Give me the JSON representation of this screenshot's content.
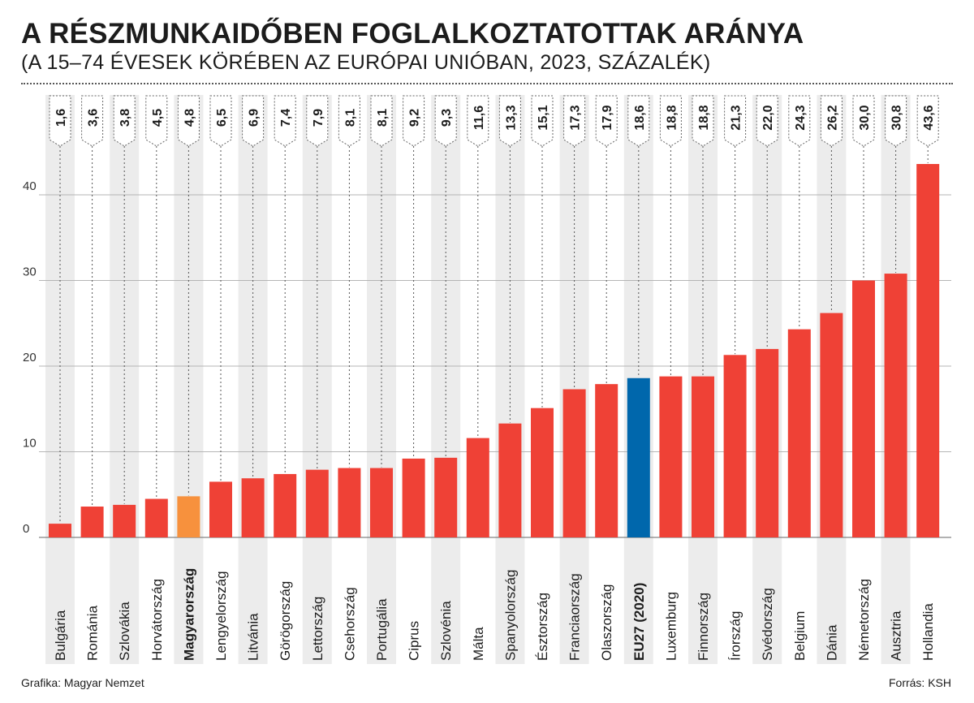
{
  "title": "A RÉSZMUNKAIDŐBEN FOGLALKOZTATOTTAK ARÁNYA",
  "subtitle": "(A 15–74 ÉVESEK KÖRÉBEN AZ EURÓPAI UNIÓBAN, 2023, SZÁZALÉK)",
  "credit": "Grafika: Magyar Nemzet",
  "source": "Forrás: KSH",
  "colors": {
    "default_bar": "#ef4136",
    "highlight_hu": "#f7913d",
    "highlight_eu": "#0067ac",
    "stripe": "#ececec"
  },
  "chart_data": {
    "type": "bar",
    "categories": [
      "Bulgária",
      "Románia",
      "Szlovákia",
      "Horvátország",
      "Magyarország",
      "Lengyelország",
      "Litvánia",
      "Görögország",
      "Lettország",
      "Csehország",
      "Portugália",
      "Ciprus",
      "Szlovénia",
      "Málta",
      "Spanyolország",
      "Észtország",
      "Franciaország",
      "Olaszország",
      "EU27 (2020)",
      "Luxemburg",
      "Finnország",
      "Írország",
      "Svédország",
      "Belgium",
      "Dánia",
      "Németország",
      "Ausztria",
      "Hollandia"
    ],
    "values": [
      1.6,
      3.6,
      3.8,
      4.5,
      4.8,
      6.5,
      6.9,
      7.4,
      7.9,
      8.1,
      8.1,
      9.2,
      9.3,
      11.6,
      13.3,
      15.1,
      17.3,
      17.9,
      18.6,
      18.8,
      18.8,
      21.3,
      22.0,
      24.3,
      26.2,
      30.0,
      30.8,
      43.6
    ],
    "value_labels": [
      "1,6",
      "3,6",
      "3,8",
      "4,5",
      "4,8",
      "6,5",
      "6,9",
      "7,4",
      "7,9",
      "8,1",
      "8,1",
      "9,2",
      "9,3",
      "11,6",
      "13,3",
      "15,1",
      "17,3",
      "17,9",
      "18,6",
      "18,8",
      "18,8",
      "21,3",
      "22,0",
      "24,3",
      "26,2",
      "30,0",
      "30,8",
      "43,6"
    ],
    "highlight": {
      "Magyarország": "highlight_hu",
      "EU27 (2020)": "highlight_eu"
    },
    "bold_categories": [
      "Magyarország",
      "EU27 (2020)"
    ],
    "yticks": [
      0,
      10,
      20,
      30,
      40
    ],
    "ylim": [
      0,
      45.5
    ],
    "grid": true,
    "xlabel": "",
    "ylabel": ""
  }
}
